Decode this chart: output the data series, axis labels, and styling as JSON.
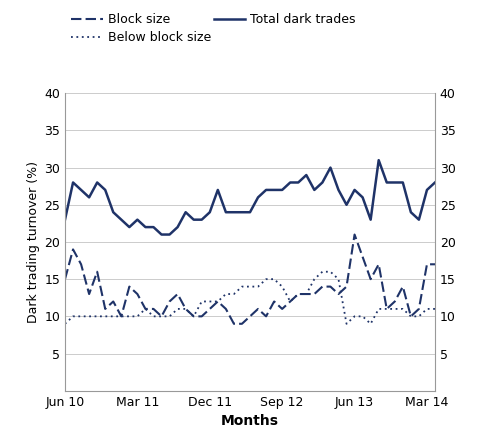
{
  "xlabel": "Months",
  "ylabel": "Dark trading turnover (%)",
  "ylim": [
    0,
    40
  ],
  "yticks": [
    5,
    10,
    15,
    20,
    25,
    30,
    35,
    40
  ],
  "color": "#1f3368",
  "x_tick_labels": [
    "Jun 10",
    "Mar 11",
    "Dec 11",
    "Sep 12",
    "Jun 13",
    "Mar 14"
  ],
  "x_tick_positions": [
    0,
    9,
    18,
    27,
    36,
    45
  ],
  "total_dark_trades": [
    23,
    28,
    27,
    26,
    28,
    27,
    24,
    23,
    22,
    23,
    22,
    22,
    21,
    21,
    22,
    24,
    23,
    23,
    24,
    27,
    24,
    24,
    24,
    24,
    26,
    27,
    27,
    27,
    28,
    28,
    29,
    27,
    28,
    30,
    27,
    25,
    27,
    26,
    23,
    31,
    28,
    28,
    28,
    24,
    23,
    27,
    28
  ],
  "block_size": [
    15,
    19,
    17,
    13,
    16,
    11,
    12,
    10,
    14,
    13,
    11,
    11,
    10,
    12,
    13,
    11,
    10,
    10,
    11,
    12,
    11,
    9,
    9,
    10,
    11,
    10,
    12,
    11,
    12,
    13,
    13,
    13,
    14,
    14,
    13,
    14,
    21,
    18,
    15,
    17,
    11,
    12,
    14,
    10,
    11,
    17,
    17
  ],
  "below_block_size": [
    9,
    10,
    10,
    10,
    10,
    10,
    10,
    10,
    10,
    10,
    11,
    10,
    10,
    10,
    11,
    11,
    10,
    12,
    12,
    12,
    13,
    13,
    14,
    14,
    14,
    15,
    15,
    14,
    12,
    13,
    13,
    15,
    16,
    16,
    15,
    9,
    10,
    10,
    9,
    11,
    11,
    11,
    11,
    10,
    10,
    11,
    11
  ],
  "legend_row1": [
    "Block size",
    "Total dark trades"
  ],
  "legend_row2": [
    "Below block size"
  ],
  "linestyles": [
    "--",
    "-",
    ":"
  ],
  "linewidths": [
    1.5,
    1.8,
    1.3
  ]
}
